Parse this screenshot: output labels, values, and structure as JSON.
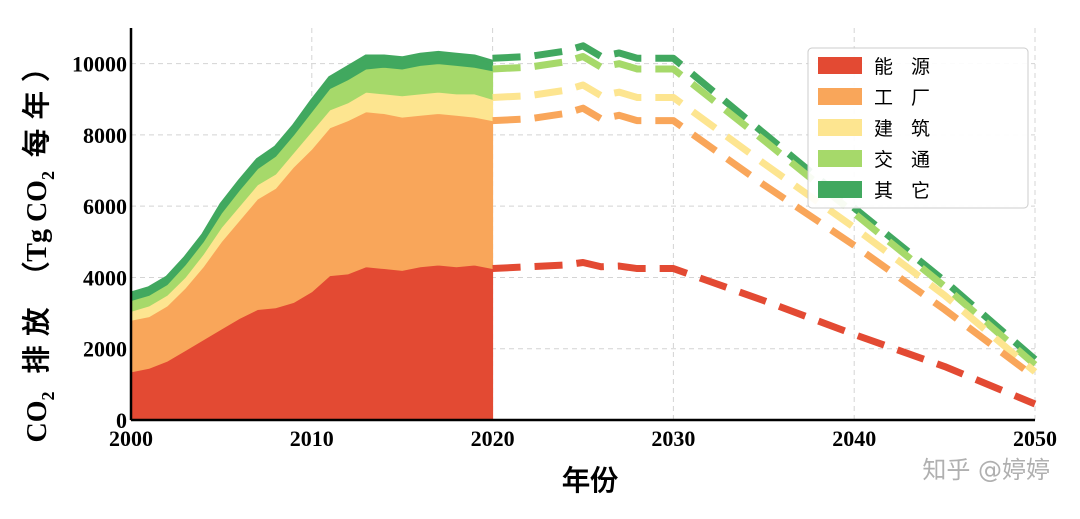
{
  "chart_data": {
    "type": "area",
    "xlabel": "年份",
    "ylabel": {
      "line1": "CO",
      "line1_sub": "2",
      "line2": "排 放",
      "line3": "（Tg CO",
      "line3_sub": "2",
      "line4": "每 年 ）"
    },
    "xlim": [
      2000,
      2050
    ],
    "ylim": [
      0,
      11000
    ],
    "x_ticks": [
      2000,
      2010,
      2020,
      2030,
      2040,
      2050
    ],
    "y_ticks": [
      0,
      2000,
      4000,
      6000,
      8000,
      10000
    ],
    "grid": true,
    "legend_position": "top-right",
    "series": [
      {
        "name": "能 源",
        "color": "#e34a33"
      },
      {
        "name": "工 厂",
        "color": "#f9a65a"
      },
      {
        "name": "建 筑",
        "color": "#fde590"
      },
      {
        "name": "交 通",
        "color": "#a6d96a"
      },
      {
        "name": "其 它",
        "color": "#41a85f"
      }
    ],
    "historical": {
      "x": [
        2000,
        2001,
        2002,
        2003,
        2004,
        2005,
        2006,
        2007,
        2008,
        2009,
        2010,
        2011,
        2012,
        2013,
        2014,
        2015,
        2016,
        2017,
        2018,
        2019,
        2020
      ],
      "cumulative": [
        [
          1350,
          1450,
          1650,
          1950,
          2250,
          2550,
          2850,
          3100,
          3150,
          3300,
          3600,
          4050,
          4100,
          4300,
          4250,
          4200,
          4300,
          4350,
          4300,
          4350,
          4250
        ],
        [
          2800,
          2900,
          3200,
          3700,
          4300,
          5000,
          5600,
          6200,
          6500,
          7100,
          7600,
          8200,
          8400,
          8650,
          8600,
          8500,
          8550,
          8600,
          8550,
          8500,
          8400
        ],
        [
          3050,
          3200,
          3500,
          4000,
          4650,
          5400,
          6000,
          6600,
          6900,
          7500,
          8100,
          8700,
          8900,
          9200,
          9150,
          9100,
          9150,
          9200,
          9150,
          9150,
          9000
        ],
        [
          3350,
          3500,
          3800,
          4350,
          5000,
          5800,
          6450,
          7050,
          7400,
          8000,
          8650,
          9300,
          9550,
          9850,
          9900,
          9850,
          9950,
          10000,
          9950,
          9900,
          9800
        ],
        [
          3550,
          3700,
          4000,
          4550,
          5200,
          6050,
          6700,
          7300,
          7650,
          8250,
          8950,
          9600,
          9900,
          10200,
          10200,
          10150,
          10250,
          10300,
          10250,
          10200,
          10050
        ]
      ]
    },
    "projection": {
      "x": [
        2020,
        2022,
        2024,
        2025,
        2026,
        2027,
        2028,
        2030,
        2035,
        2040,
        2045,
        2050
      ],
      "cumulative": [
        [
          4250,
          4300,
          4350,
          4420,
          4300,
          4320,
          4250,
          4250,
          3350,
          2400,
          1500,
          450
        ],
        [
          8400,
          8450,
          8600,
          8750,
          8450,
          8550,
          8400,
          8400,
          6600,
          4900,
          3100,
          1200
        ],
        [
          9050,
          9100,
          9250,
          9400,
          9100,
          9200,
          9050,
          9050,
          7200,
          5400,
          3500,
          1350
        ],
        [
          9850,
          9900,
          10050,
          10200,
          9900,
          10000,
          9850,
          9850,
          7850,
          5800,
          3750,
          1550
        ],
        [
          10150,
          10200,
          10350,
          10500,
          10200,
          10300,
          10150,
          10150,
          8050,
          5950,
          3900,
          1700
        ]
      ]
    }
  },
  "watermark": "知乎 @婷婷"
}
